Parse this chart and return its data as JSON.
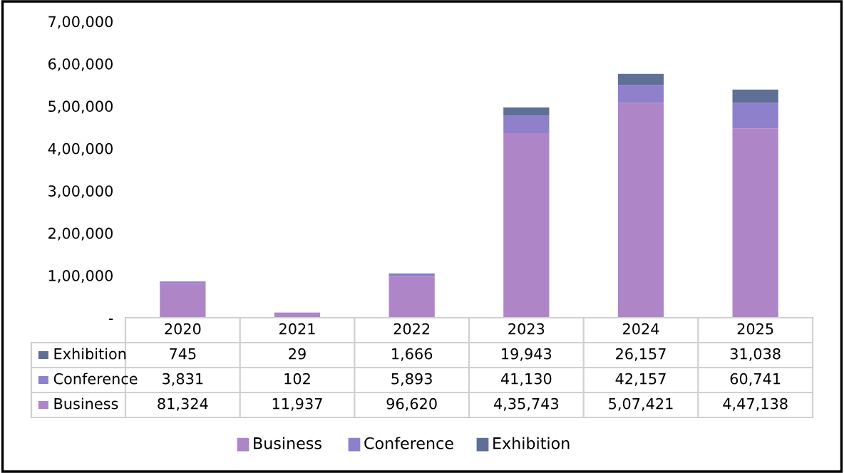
{
  "chart_data": {
    "type": "bar",
    "stacked": true,
    "categories": [
      "2020",
      "2021",
      "2022",
      "2023",
      "2024",
      "2025"
    ],
    "series": [
      {
        "name": "Business",
        "color": "#ae86c8",
        "values": [
          81324,
          11937,
          96620,
          435743,
          507421,
          447138
        ],
        "value_labels": [
          "81,324",
          "11,937",
          "96,620",
          "4,35,743",
          "5,07,421",
          "4,47,138"
        ]
      },
      {
        "name": "Conference",
        "color": "#8f80cc",
        "values": [
          3831,
          102,
          5893,
          41130,
          42157,
          60741
        ],
        "value_labels": [
          "3,831",
          "102",
          "5,893",
          "41,130",
          "42,157",
          "60,741"
        ]
      },
      {
        "name": "Exhibition",
        "color": "#5f6f96",
        "values": [
          745,
          29,
          1666,
          19943,
          26157,
          31038
        ],
        "value_labels": [
          "745",
          "29",
          "1,666",
          "19,943",
          "26,157",
          "31,038"
        ]
      }
    ],
    "ylim": [
      0,
      700000
    ],
    "yticks": [
      {
        "value": 0,
        "label": "-"
      },
      {
        "value": 100000,
        "label": "1,00,000"
      },
      {
        "value": 200000,
        "label": "2,00,000"
      },
      {
        "value": 300000,
        "label": "3,00,000"
      },
      {
        "value": 400000,
        "label": "4,00,000"
      },
      {
        "value": 500000,
        "label": "5,00,000"
      },
      {
        "value": 600000,
        "label": "6,00,000"
      },
      {
        "value": 700000,
        "label": "7,00,000"
      }
    ],
    "grid": false,
    "legend": "bottom"
  }
}
